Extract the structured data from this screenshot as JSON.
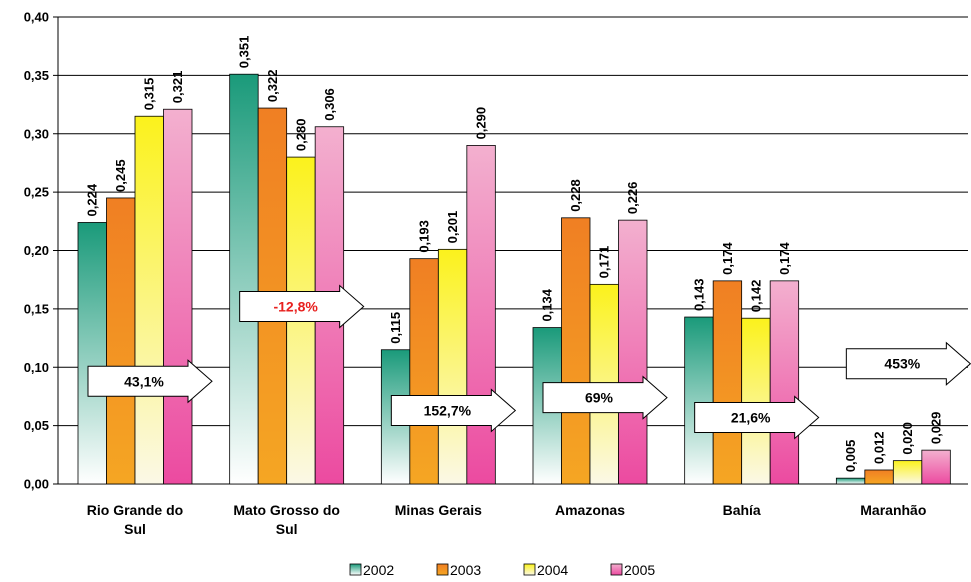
{
  "chart_data": {
    "type": "bar",
    "categories": [
      [
        "Rio Grande do",
        "Sul"
      ],
      [
        "Mato Grosso do",
        "Sul"
      ],
      [
        "Minas Gerais"
      ],
      [
        "Amazonas"
      ],
      [
        "Bahía"
      ],
      [
        "Maranhão"
      ]
    ],
    "ylim": [
      0,
      0.4
    ],
    "yticks": [
      "0,00",
      "0,05",
      "0,10",
      "0,15",
      "0,20",
      "0,25",
      "0,30",
      "0,35",
      "0,40"
    ],
    "grid": true,
    "legend_position": "bottom",
    "series": [
      {
        "name": "2002",
        "color": "#1a9a7a",
        "values": [
          0.224,
          0.351,
          0.115,
          0.134,
          0.143,
          0.005
        ],
        "labels": [
          "0,224",
          "0,351",
          "0,115",
          "0,134",
          "0,143",
          "0,005"
        ]
      },
      {
        "name": "2003",
        "color": "#f07f23",
        "values": [
          0.245,
          0.322,
          0.193,
          0.228,
          0.174,
          0.012
        ],
        "labels": [
          "0,245",
          "0,322",
          "0,193",
          "0,228",
          "0,174",
          "0,012"
        ]
      },
      {
        "name": "2004",
        "color": "#fbf21c",
        "values": [
          0.315,
          0.28,
          0.201,
          0.171,
          0.142,
          0.02
        ],
        "labels": [
          "0,315",
          "0,280",
          "0,201",
          "0,171",
          "0,142",
          "0,020"
        ]
      },
      {
        "name": "2005",
        "color": "#ec4aa0",
        "values": [
          0.321,
          0.306,
          0.29,
          0.226,
          0.174,
          0.029
        ],
        "labels": [
          "0,321",
          "0,306",
          "0,290",
          "0,226",
          "0,174",
          "0,029"
        ]
      }
    ],
    "annotations": [
      {
        "text": "43,1%",
        "color": "#000000",
        "y": 0.088
      },
      {
        "text": "-12,8%",
        "color": "#e8201e",
        "y": 0.152
      },
      {
        "text": "152,7%",
        "color": "#000000",
        "y": 0.063
      },
      {
        "text": "69%",
        "color": "#000000",
        "y": 0.074
      },
      {
        "text": "21,6%",
        "color": "#000000",
        "y": 0.057
      },
      {
        "text": "453%",
        "color": "#000000",
        "y": 0.103
      }
    ]
  }
}
